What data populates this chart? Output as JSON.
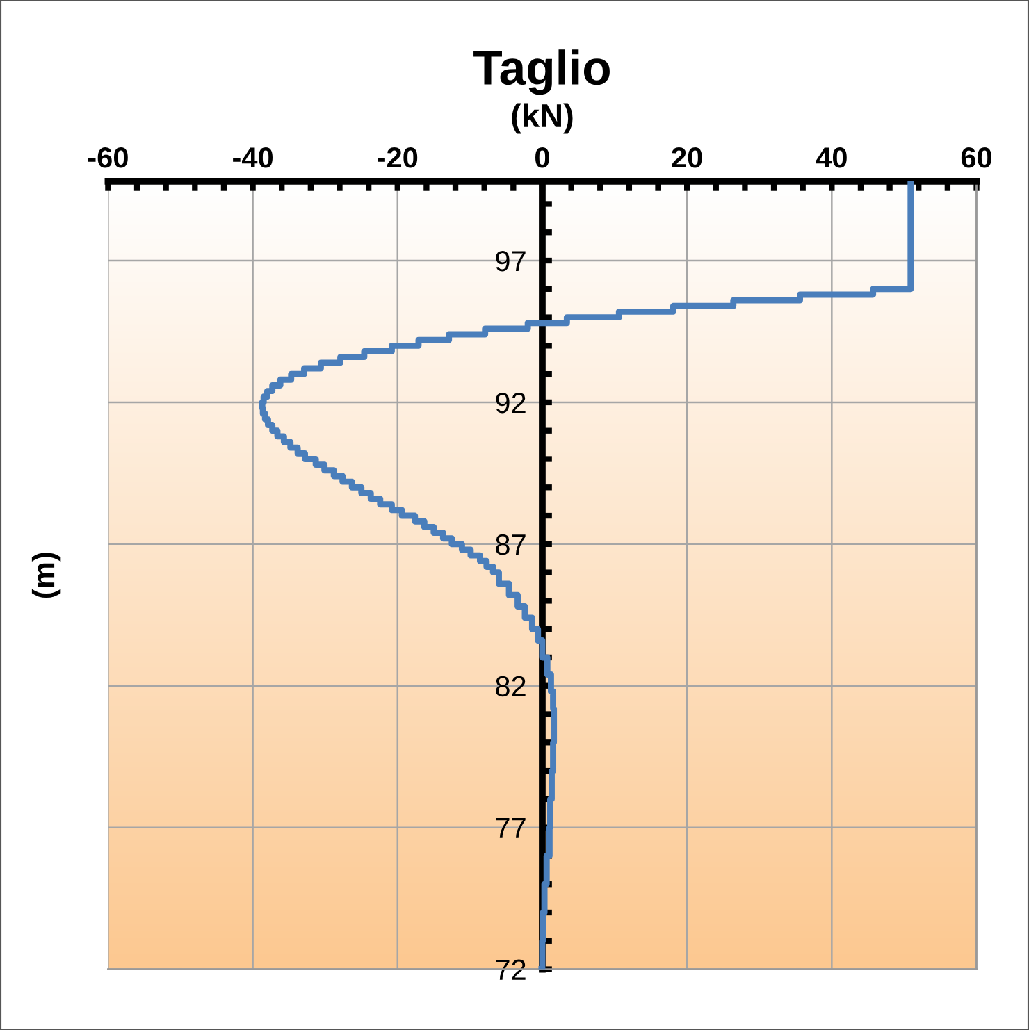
{
  "chart_data": {
    "type": "step",
    "title": "Taglio",
    "xlabel": "(kN)",
    "ylabel": "(m)",
    "orientation": "horizontal",
    "x": [
      99.8,
      96.0,
      95.8,
      95.6,
      95.4,
      95.2,
      95.0,
      94.8,
      94.6,
      94.4,
      94.2,
      94.0,
      93.8,
      93.6,
      93.4,
      93.2,
      93.0,
      92.8,
      92.6,
      92.4,
      92.2,
      92.0,
      91.8,
      91.6,
      91.4,
      91.2,
      91.0,
      90.8,
      90.6,
      90.4,
      90.2,
      90.0,
      89.8,
      89.6,
      89.4,
      89.2,
      89.0,
      88.8,
      88.6,
      88.4,
      88.2,
      88.0,
      87.8,
      87.6,
      87.4,
      87.2,
      87.0,
      86.8,
      86.6,
      86.4,
      86.2,
      86.0,
      85.6,
      85.2,
      84.8,
      84.4,
      84.0,
      83.6,
      83.0,
      82.4,
      81.8,
      81.2,
      80.6,
      80.0,
      79.0,
      78.0,
      77.0,
      76.0,
      75.0,
      74.0,
      73.0,
      72.0
    ],
    "series": [
      {
        "color": "#4a7ebb",
        "values": [
          50.9,
          45.7,
          35.6,
          26.4,
          18.1,
          10.6,
          3.4,
          -2.0,
          -7.9,
          -12.9,
          -17.1,
          -20.8,
          -24.6,
          -27.9,
          -30.6,
          -32.9,
          -34.7,
          -36.2,
          -37.3,
          -38.0,
          -38.5,
          -38.7,
          -38.6,
          -38.3,
          -37.9,
          -37.3,
          -36.6,
          -35.7,
          -34.8,
          -33.8,
          -32.8,
          -31.3,
          -30.1,
          -28.8,
          -27.6,
          -26.3,
          -25.0,
          -23.7,
          -22.4,
          -20.8,
          -19.4,
          -17.6,
          -16.3,
          -15.0,
          -13.7,
          -12.5,
          -11.1,
          -9.9,
          -8.6,
          -7.7,
          -6.8,
          -6.0,
          -4.6,
          -3.4,
          -2.4,
          -1.4,
          -0.6,
          0.0,
          0.7,
          1.2,
          1.5,
          1.6,
          1.6,
          1.5,
          1.3,
          1.1,
          1.0,
          0.6,
          0.3,
          0.1,
          0.0,
          -0.1
        ]
      }
    ],
    "xlim": [
      -60,
      60
    ],
    "xticks": [
      -60,
      {
        "value": -56,
        "label": null
      },
      {
        "value": -52,
        "label": null
      },
      {
        "value": -48,
        "label": null
      },
      {
        "value": -44,
        "label": null
      },
      -40,
      {
        "value": -36,
        "label": null
      },
      {
        "value": -32,
        "label": null
      },
      {
        "value": -28,
        "label": null
      },
      {
        "value": -24,
        "label": null
      },
      -20,
      {
        "value": -16,
        "label": null
      },
      {
        "value": -12,
        "label": null
      },
      {
        "value": -8,
        "label": null
      },
      {
        "value": -4,
        "label": null
      },
      0,
      {
        "value": 4,
        "label": null
      },
      {
        "value": 8,
        "label": null
      },
      {
        "value": 12,
        "label": null
      },
      {
        "value": 16,
        "label": null
      },
      20,
      {
        "value": 24,
        "label": null
      },
      {
        "value": 28,
        "label": null
      },
      {
        "value": 32,
        "label": null
      },
      {
        "value": 36,
        "label": null
      },
      40,
      {
        "value": 44,
        "label": null
      },
      {
        "value": 48,
        "label": null
      },
      {
        "value": 52,
        "label": null
      },
      {
        "value": 56,
        "label": null
      },
      60
    ],
    "ylim": [
      72,
      99.8
    ],
    "yticks": [
      72,
      {
        "value": 73,
        "label": null
      },
      {
        "value": 74,
        "label": null
      },
      {
        "value": 75,
        "label": null
      },
      {
        "value": 76,
        "label": null
      },
      77,
      {
        "value": 78,
        "label": null
      },
      {
        "value": 79,
        "label": null
      },
      {
        "value": 80,
        "label": null
      },
      {
        "value": 81,
        "label": null
      },
      82,
      {
        "value": 83,
        "label": null
      },
      {
        "value": 84,
        "label": null
      },
      {
        "value": 85,
        "label": null
      },
      {
        "value": 86,
        "label": null
      },
      87,
      {
        "value": 88,
        "label": null
      },
      {
        "value": 89,
        "label": null
      },
      {
        "value": 90,
        "label": null
      },
      {
        "value": 91,
        "label": null
      },
      92,
      {
        "value": 93,
        "label": null
      },
      {
        "value": 94,
        "label": null
      },
      {
        "value": 95,
        "label": null
      },
      {
        "value": 96,
        "label": null
      },
      97,
      {
        "value": 98,
        "label": null
      },
      {
        "value": 99,
        "label": null
      }
    ],
    "grid": true,
    "marker": "none",
    "line_style": "solid"
  }
}
